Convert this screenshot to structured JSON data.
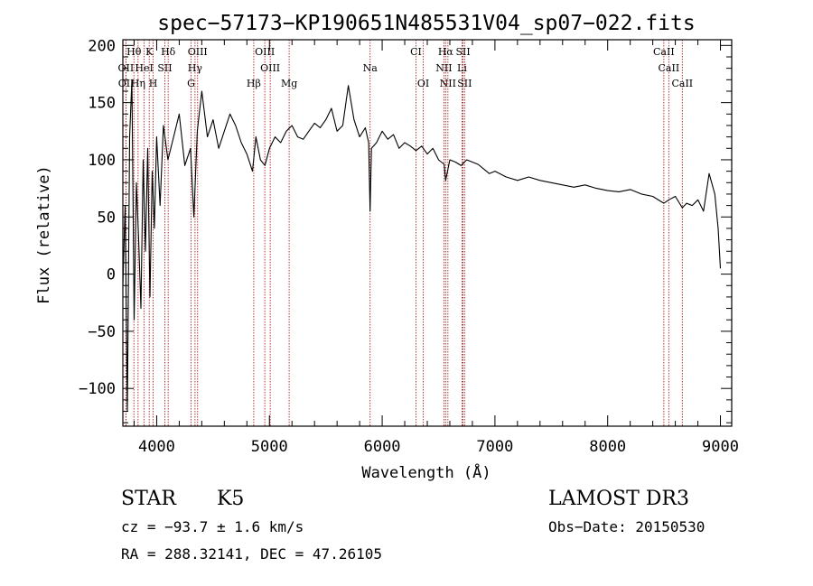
{
  "chart_data": {
    "type": "line",
    "title": "spec−57173−KP190651N485531V04_sp07−022.fits",
    "xlabel": "Wavelength (Å)",
    "ylabel": "Flux (relative)",
    "xlim": [
      3700,
      9100
    ],
    "ylim": [
      -133,
      205
    ],
    "xticks": [
      4000,
      5000,
      6000,
      7000,
      8000,
      9000
    ],
    "xtick_labels": [
      "4000",
      "5000",
      "6000",
      "7000",
      "8000",
      "9000"
    ],
    "yticks": [
      -100,
      -50,
      0,
      50,
      100,
      150,
      200
    ],
    "ytick_labels": [
      "−100",
      "−50",
      "0",
      "50",
      "100",
      "150",
      "200"
    ],
    "series": [
      {
        "name": "spectrum",
        "x": [
          3700,
          3720,
          3740,
          3760,
          3780,
          3800,
          3820,
          3840,
          3860,
          3880,
          3900,
          3920,
          3940,
          3960,
          3980,
          4000,
          4030,
          4060,
          4100,
          4150,
          4200,
          4250,
          4300,
          4330,
          4360,
          4400,
          4450,
          4500,
          4550,
          4600,
          4650,
          4700,
          4750,
          4800,
          4850,
          4880,
          4920,
          4960,
          5000,
          5050,
          5100,
          5150,
          5200,
          5250,
          5300,
          5350,
          5400,
          5450,
          5500,
          5550,
          5600,
          5650,
          5700,
          5750,
          5800,
          5850,
          5880,
          5893,
          5905,
          5950,
          6000,
          6050,
          6100,
          6150,
          6200,
          6250,
          6300,
          6350,
          6400,
          6450,
          6500,
          6550,
          6563,
          6600,
          6650,
          6700,
          6750,
          6800,
          6850,
          6900,
          6950,
          7000,
          7100,
          7200,
          7300,
          7400,
          7500,
          7600,
          7700,
          7800,
          7900,
          8000,
          8100,
          8200,
          8300,
          8400,
          8498,
          8542,
          8600,
          8662,
          8700,
          8750,
          8800,
          8850,
          8900,
          8950,
          8980,
          9000
        ],
        "values": [
          -10,
          60,
          -120,
          120,
          170,
          -40,
          80,
          30,
          -30,
          100,
          20,
          110,
          -20,
          90,
          40,
          120,
          60,
          130,
          100,
          120,
          140,
          95,
          110,
          50,
          125,
          160,
          120,
          135,
          110,
          125,
          140,
          130,
          115,
          105,
          90,
          120,
          100,
          95,
          110,
          120,
          115,
          125,
          130,
          120,
          118,
          125,
          132,
          128,
          135,
          145,
          125,
          130,
          165,
          135,
          120,
          128,
          115,
          55,
          110,
          115,
          125,
          118,
          122,
          110,
          115,
          112,
          108,
          112,
          105,
          110,
          100,
          96,
          82,
          100,
          98,
          95,
          100,
          98,
          96,
          92,
          88,
          90,
          85,
          82,
          85,
          82,
          80,
          78,
          76,
          78,
          75,
          73,
          72,
          74,
          70,
          68,
          62,
          65,
          68,
          58,
          62,
          60,
          65,
          55,
          88,
          70,
          40,
          5
        ]
      }
    ],
    "lines": [
      {
        "label": "Hθ",
        "x": 3798,
        "row": 1
      },
      {
        "label": "K",
        "x": 3934,
        "row": 1
      },
      {
        "label": "Hδ",
        "x": 4102,
        "row": 1
      },
      {
        "label": "OIII",
        "x": 4363,
        "row": 1
      },
      {
        "label": "OIII",
        "x": 4959,
        "row": 1
      },
      {
        "label": "CI",
        "x": 6300,
        "row": 1
      },
      {
        "label": "Hα",
        "x": 6563,
        "row": 1
      },
      {
        "label": "SII",
        "x": 6717,
        "row": 1
      },
      {
        "label": "CaII",
        "x": 8498,
        "row": 1
      },
      {
        "label": "OII",
        "x": 3727,
        "row": 2
      },
      {
        "label": "HeI",
        "x": 3889,
        "row": 2
      },
      {
        "label": "SII",
        "x": 4072,
        "row": 2
      },
      {
        "label": "Hγ",
        "x": 4340,
        "row": 2
      },
      {
        "label": "OIII",
        "x": 5007,
        "row": 2
      },
      {
        "label": "Na",
        "x": 5893,
        "row": 2
      },
      {
        "label": "NII",
        "x": 6548,
        "row": 2
      },
      {
        "label": "Li",
        "x": 6708,
        "row": 2
      },
      {
        "label": "CaII",
        "x": 8542,
        "row": 2
      },
      {
        "label": "OII",
        "x": 3729,
        "row": 3
      },
      {
        "label": "Hη",
        "x": 3835,
        "row": 3
      },
      {
        "label": "H",
        "x": 3969,
        "row": 3
      },
      {
        "label": "G",
        "x": 4305,
        "row": 3
      },
      {
        "label": "Hβ",
        "x": 4861,
        "row": 3
      },
      {
        "label": "Mg",
        "x": 5175,
        "row": 3
      },
      {
        "label": "OI",
        "x": 6364,
        "row": 3
      },
      {
        "label": "NII",
        "x": 6583,
        "row": 3
      },
      {
        "label": "SII",
        "x": 6731,
        "row": 3
      },
      {
        "label": "CaII",
        "x": 8662,
        "row": 3
      }
    ]
  },
  "info": {
    "object_class": "STAR",
    "subclass": "K5",
    "survey": "LAMOST DR3",
    "redshift": "cz = −93.7 ± 1.6 km/s",
    "obs_date": "Obs−Date: 20150530",
    "coords": "RA = 288.32141, DEC =  47.26105"
  },
  "colors": {
    "spectrum": "#000000",
    "line_marker": "#b22222",
    "axes": "#000000"
  }
}
